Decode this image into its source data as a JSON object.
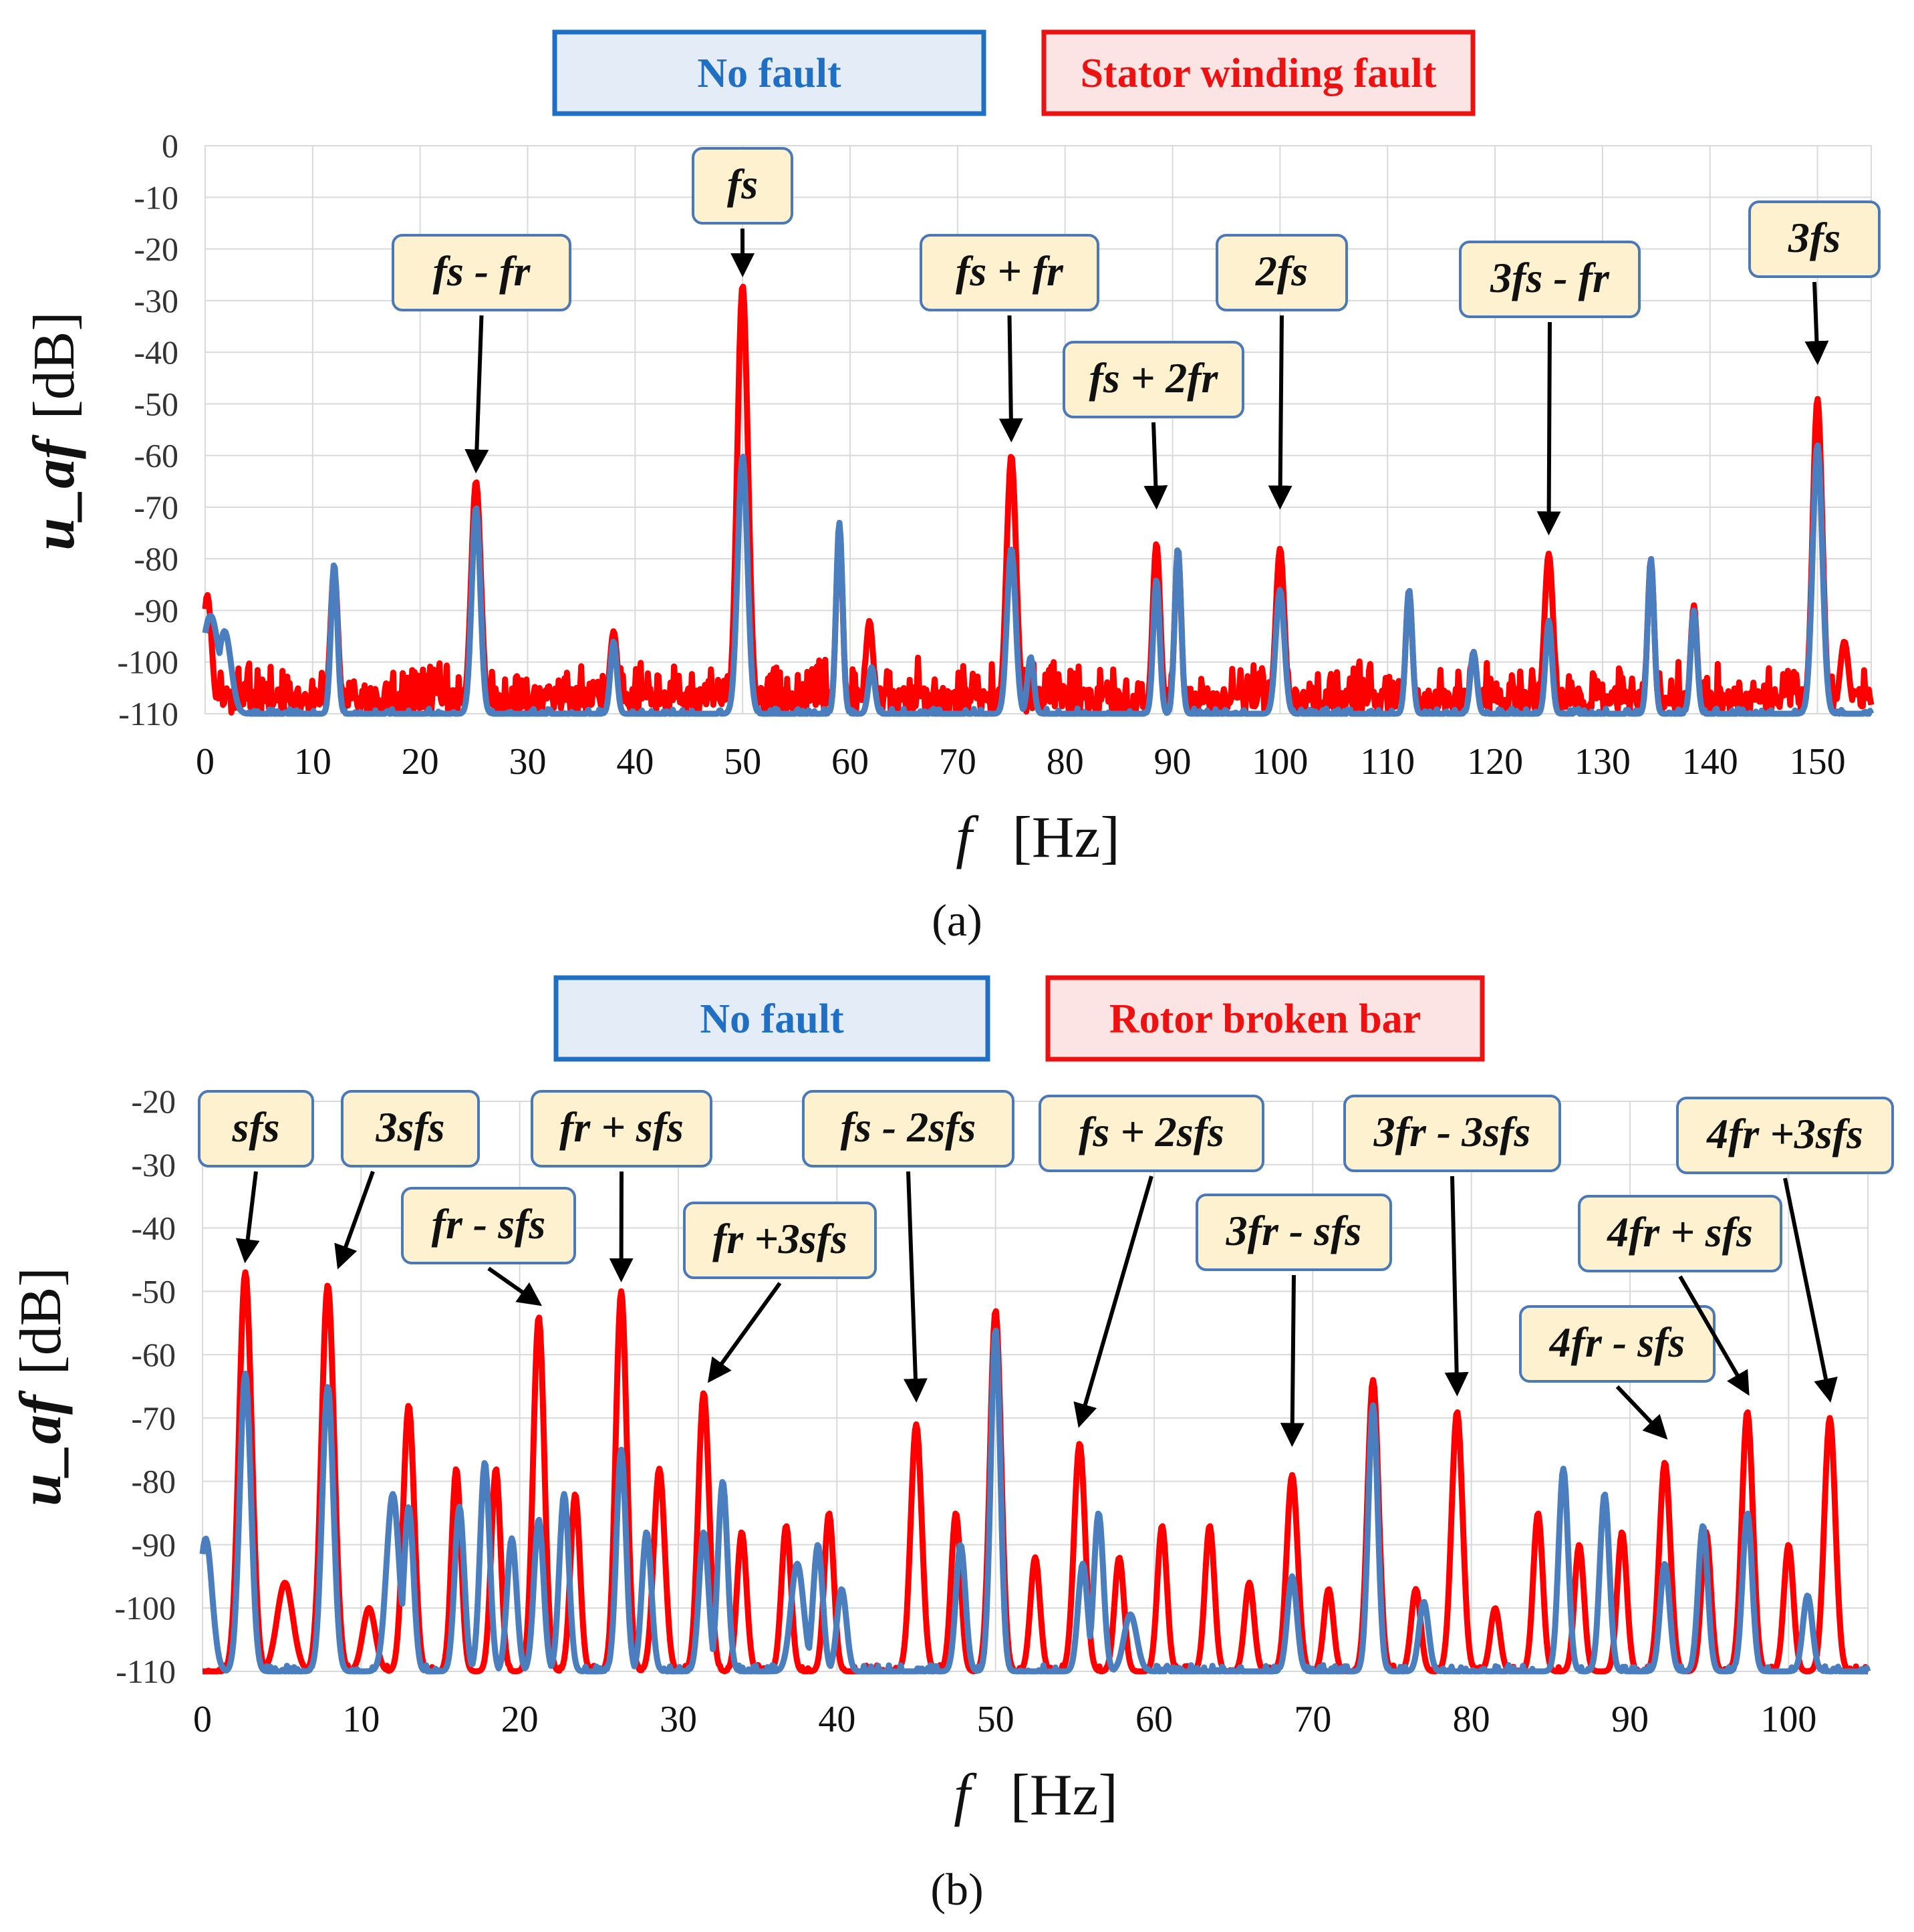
{
  "figure_captions": [
    "(a)",
    "(b)"
  ],
  "colors": {
    "fault_a": "#ff0000",
    "no_fault": "#4a7ebf",
    "fault_b": "#ff0000",
    "annotation_fill": "#fdf1cf",
    "annotation_stroke": "#4a78b8",
    "legend_nofault_fill": "#e4ecf7",
    "legend_fault_fill": "#fde4e4"
  },
  "chart_data": [
    {
      "type": "line",
      "panel": "a",
      "xlabel": "f",
      "xunit": "[Hz]",
      "ylabel": "u_af",
      "yunit": "[dB]",
      "xlim": [
        0,
        155
      ],
      "ylim": [
        -110,
        0
      ],
      "xticks": [
        0,
        10,
        20,
        30,
        40,
        50,
        60,
        70,
        80,
        90,
        100,
        110,
        120,
        130,
        140,
        150
      ],
      "yticks": [
        0,
        -10,
        -20,
        -30,
        -40,
        -50,
        -60,
        -70,
        -80,
        -90,
        -100,
        -110
      ],
      "legend": [
        "No fault",
        "Stator winding fault"
      ],
      "series": [
        {
          "name": "Stator winding fault",
          "color": "#ff0000",
          "floor": -106,
          "peaks": [
            [
              0.2,
              -87,
              0.4
            ],
            [
              12,
              -82,
              0.35
            ],
            [
              25.2,
              -65,
              0.45
            ],
            [
              38,
              -94,
              0.35
            ],
            [
              50,
              -27,
              0.5
            ],
            [
              59,
              -74,
              0.3
            ],
            [
              61.8,
              -92,
              0.35
            ],
            [
              75,
              -60,
              0.45
            ],
            [
              88.5,
              -77,
              0.35
            ],
            [
              90.5,
              -78,
              0.3
            ],
            [
              100,
              -78,
              0.4
            ],
            [
              112,
              -86,
              0.3
            ],
            [
              118,
              -98,
              0.3
            ],
            [
              125,
              -79,
              0.4
            ],
            [
              134.5,
              -80,
              0.3
            ],
            [
              138.5,
              -89,
              0.3
            ],
            [
              150,
              -49,
              0.45
            ],
            [
              152.5,
              -96,
              0.4
            ]
          ]
        },
        {
          "name": "No fault",
          "color": "#4a7ebf",
          "floor": -110,
          "peaks": [
            [
              0.5,
              -91,
              0.8
            ],
            [
              1.8,
              -94,
              0.6
            ],
            [
              12,
              -81,
              0.3
            ],
            [
              25.2,
              -70,
              0.4
            ],
            [
              38,
              -96,
              0.3
            ],
            [
              50,
              -60,
              0.45
            ],
            [
              59,
              -73,
              0.3
            ],
            [
              62,
              -101,
              0.3
            ],
            [
              75,
              -78,
              0.4
            ],
            [
              76.8,
              -99,
              0.3
            ],
            [
              88.5,
              -84,
              0.3
            ],
            [
              90.5,
              -78,
              0.3
            ],
            [
              100,
              -86,
              0.4
            ],
            [
              112,
              -86,
              0.3
            ],
            [
              118,
              -98,
              0.3
            ],
            [
              125,
              -92,
              0.3
            ],
            [
              134.5,
              -80,
              0.3
            ],
            [
              138.5,
              -90,
              0.3
            ],
            [
              150,
              -58,
              0.45
            ]
          ]
        }
      ],
      "annotations": [
        {
          "text": "fs - fr",
          "x": 25.2,
          "y": -64
        },
        {
          "text": "fs",
          "x": 50,
          "y": -26
        },
        {
          "text": "fs + fr",
          "x": 75,
          "y": -58
        },
        {
          "text": "fs + 2fr",
          "x": 88.5,
          "y": -71
        },
        {
          "text": "2fs",
          "x": 100,
          "y": -71
        },
        {
          "text": "3fs - fr",
          "x": 125,
          "y": -76
        },
        {
          "text": "3fs",
          "x": 150,
          "y": -43
        }
      ]
    },
    {
      "type": "line",
      "panel": "b",
      "xlabel": "f",
      "xunit": "[Hz]",
      "ylabel": "u_af",
      "yunit": "[dB]",
      "xlim": [
        0,
        105
      ],
      "ylim": [
        -110,
        -20
      ],
      "xticks": [
        0,
        10,
        20,
        30,
        40,
        50,
        60,
        70,
        80,
        90,
        100
      ],
      "yticks": [
        -20,
        -30,
        -40,
        -50,
        -60,
        -70,
        -80,
        -90,
        -100,
        -110
      ],
      "legend": [
        "No fault",
        "Rotor broken bar"
      ],
      "series": [
        {
          "name": "Rotor broken bar",
          "color": "#ff0000",
          "floor": -110,
          "peaks": [
            [
              2.7,
              -47,
              0.4
            ],
            [
              5.2,
              -96,
              0.5
            ],
            [
              7.9,
              -49,
              0.4
            ],
            [
              10.5,
              -100,
              0.4
            ],
            [
              13,
              -68,
              0.35
            ],
            [
              16,
              -78,
              0.3
            ],
            [
              18.5,
              -78,
              0.3
            ],
            [
              21.2,
              -54,
              0.35
            ],
            [
              23.5,
              -82,
              0.3
            ],
            [
              26.4,
              -50,
              0.35
            ],
            [
              28.8,
              -78,
              0.35
            ],
            [
              31.6,
              -66,
              0.35
            ],
            [
              34,
              -88,
              0.3
            ],
            [
              36.8,
              -87,
              0.3
            ],
            [
              39.5,
              -85,
              0.3
            ],
            [
              45,
              -71,
              0.35
            ],
            [
              47.5,
              -85,
              0.3
            ],
            [
              50,
              -53,
              0.35
            ],
            [
              52.5,
              -92,
              0.3
            ],
            [
              55.3,
              -74,
              0.35
            ],
            [
              57.8,
              -92,
              0.3
            ],
            [
              60.5,
              -87,
              0.3
            ],
            [
              63.5,
              -87,
              0.3
            ],
            [
              66,
              -96,
              0.3
            ],
            [
              68.7,
              -79,
              0.35
            ],
            [
              71,
              -97,
              0.3
            ],
            [
              73.8,
              -64,
              0.35
            ],
            [
              76.5,
              -97,
              0.3
            ],
            [
              79.1,
              -69,
              0.35
            ],
            [
              81.5,
              -100,
              0.3
            ],
            [
              84.2,
              -85,
              0.3
            ],
            [
              86.8,
              -90,
              0.3
            ],
            [
              89.5,
              -88,
              0.3
            ],
            [
              92.2,
              -77,
              0.35
            ],
            [
              94.8,
              -88,
              0.3
            ],
            [
              97.4,
              -69,
              0.35
            ],
            [
              100,
              -90,
              0.3
            ],
            [
              102.6,
              -70,
              0.35
            ]
          ]
        },
        {
          "name": "No fault",
          "color": "#4a7ebf",
          "floor": -110,
          "peaks": [
            [
              0.2,
              -89,
              0.4
            ],
            [
              2.7,
              -63,
              0.35
            ],
            [
              7.9,
              -65,
              0.35
            ],
            [
              12,
              -82,
              0.4
            ],
            [
              13,
              -84,
              0.3
            ],
            [
              16.2,
              -84,
              0.3
            ],
            [
              17.8,
              -77,
              0.3
            ],
            [
              19.5,
              -89,
              0.3
            ],
            [
              21.2,
              -86,
              0.3
            ],
            [
              22.8,
              -82,
              0.3
            ],
            [
              26.4,
              -75,
              0.3
            ],
            [
              28,
              -88,
              0.3
            ],
            [
              31.6,
              -88,
              0.3
            ],
            [
              32.8,
              -80,
              0.3
            ],
            [
              37.5,
              -93,
              0.4
            ],
            [
              38.8,
              -90,
              0.3
            ],
            [
              40.3,
              -97,
              0.3
            ],
            [
              47.8,
              -90,
              0.3
            ],
            [
              50,
              -56,
              0.3
            ],
            [
              55.5,
              -93,
              0.3
            ],
            [
              56.5,
              -85,
              0.3
            ],
            [
              58.5,
              -101,
              0.4
            ],
            [
              68.7,
              -95,
              0.3
            ],
            [
              73.8,
              -68,
              0.3
            ],
            [
              77,
              -99,
              0.3
            ],
            [
              85.8,
              -78,
              0.3
            ],
            [
              88.4,
              -82,
              0.3
            ],
            [
              92.2,
              -93,
              0.3
            ],
            [
              94.6,
              -87,
              0.3
            ],
            [
              97.4,
              -85,
              0.3
            ],
            [
              101.2,
              -98,
              0.3
            ]
          ]
        }
      ],
      "annotations": [
        {
          "text": "sfs",
          "x": 2.7,
          "y": -46
        },
        {
          "text": "3sfs",
          "x": 8.6,
          "y": -47
        },
        {
          "text": "fr - sfs",
          "x": 21.2,
          "y": -53
        },
        {
          "text": "fr + sfs",
          "x": 26.4,
          "y": -49
        },
        {
          "text": "fr +3sfs",
          "x": 32,
          "y": -65
        },
        {
          "text": "fs - 2sfs",
          "x": 45,
          "y": -68
        },
        {
          "text": "fs + 2sfs",
          "x": 55.3,
          "y": -72
        },
        {
          "text": "3fr - sfs",
          "x": 68.7,
          "y": -75
        },
        {
          "text": "3fr - 3sfs",
          "x": 79.1,
          "y": -67
        },
        {
          "text": "4fr - sfs",
          "x": 92.2,
          "y": -74
        },
        {
          "text": "4fr + sfs",
          "x": 97.4,
          "y": -67
        },
        {
          "text": "4fr +3sfs",
          "x": 102.6,
          "y": -68
        }
      ]
    }
  ]
}
